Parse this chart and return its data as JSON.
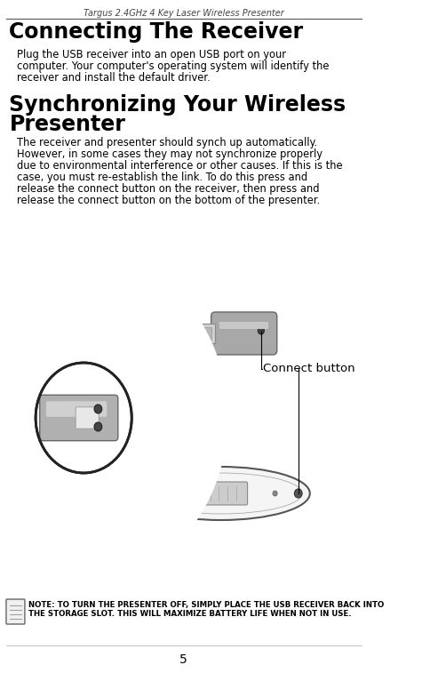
{
  "header_text": "Targus 2.4GHz 4 Key Laser Wireless Presenter",
  "section1_title": "Connecting The Receiver",
  "section1_body_lines": [
    "Plug the USB receiver into an open USB port on your",
    "computer. Your computer's operating system will identify the",
    "receiver and install the default driver."
  ],
  "section2_title_line1": "Synchronizing Your Wireless",
  "section2_title_line2": "Presenter",
  "section2_body_lines": [
    "The receiver and presenter should synch up automatically.",
    "However, in some cases they may not synchronize properly",
    "due to environmental interference or other causes. If this is the",
    "case, you must re-establish the link. To do this press and",
    "release the connect button on the receiver, then press and",
    "release the connect button on the bottom of the presenter."
  ],
  "connect_button_label": "Connect button",
  "note_line1": "NOTE: TO TURN THE PRESENTER OFF, SIMPLY PLACE THE USB RECEIVER BACK INTO",
  "note_line2": "THE STORAGE SLOT. THIS WILL MAXIMIZE BATTERY LIFE WHEN NOT IN USE.",
  "page_number": "5",
  "bg_color": "#ffffff",
  "text_color": "#000000",
  "header_color": "#444444",
  "note_font_size": 6.2,
  "body_font_size": 8.3,
  "title1_font_size": 17,
  "title2_font_size": 17,
  "header_font_size": 7.0,
  "page_num_font_size": 10
}
